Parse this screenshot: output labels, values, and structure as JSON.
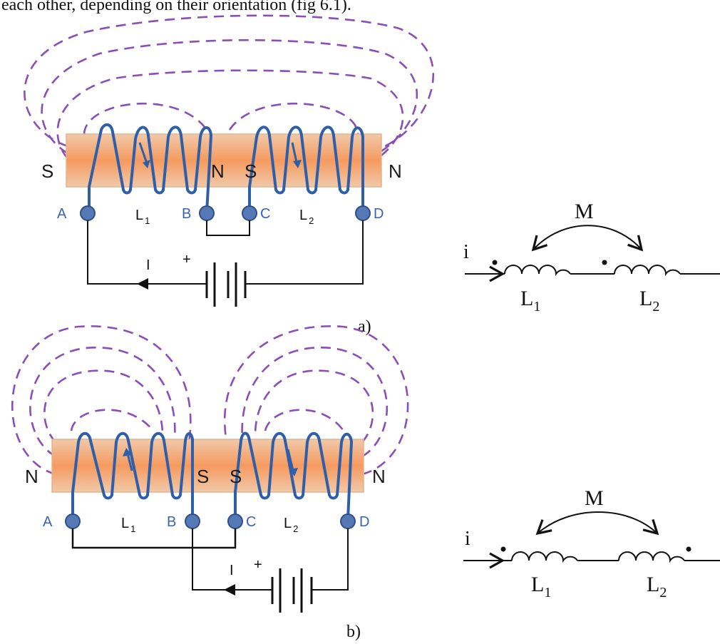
{
  "caption": "each other, depending on their orientation (fig 6.1).",
  "colors": {
    "field_line": "#8a4fb6",
    "winding": "#2f5fa8",
    "terminal_fill": "#5479b4",
    "core_edge": "#e7b592",
    "core_center": "#f6a672",
    "wire": "#111111"
  },
  "figures": [
    {
      "id": "a",
      "label": "a)",
      "pole_labels": [
        "S",
        "N",
        "S",
        "N"
      ],
      "terminals": [
        "A",
        "B",
        "C",
        "D"
      ],
      "coil1": {
        "base": "L",
        "sub": "1"
      },
      "coil2": {
        "base": "L",
        "sub": "2"
      },
      "current_label": "I",
      "battery_plus": "+",
      "symbol": {
        "current": "i",
        "mutual": "M",
        "l1_base": "L",
        "l1_sub": "1",
        "l2_base": "L",
        "l2_sub": "2",
        "dot_convention": "both dots before coils (series aiding)"
      }
    },
    {
      "id": "b",
      "label": "b)",
      "pole_labels": [
        "N",
        "S",
        "S",
        "N"
      ],
      "terminals": [
        "A",
        "B",
        "C",
        "D"
      ],
      "coil1": {
        "base": "L",
        "sub": "1"
      },
      "coil2": {
        "base": "L",
        "sub": "2"
      },
      "current_label": "I",
      "battery_plus": "+",
      "symbol": {
        "current": "i",
        "mutual": "M",
        "l1_base": "L",
        "l1_sub": "1",
        "l2_base": "L",
        "l2_sub": "2",
        "dot_convention": "dot before first coil, dot after second coil (series opposing)"
      }
    }
  ]
}
